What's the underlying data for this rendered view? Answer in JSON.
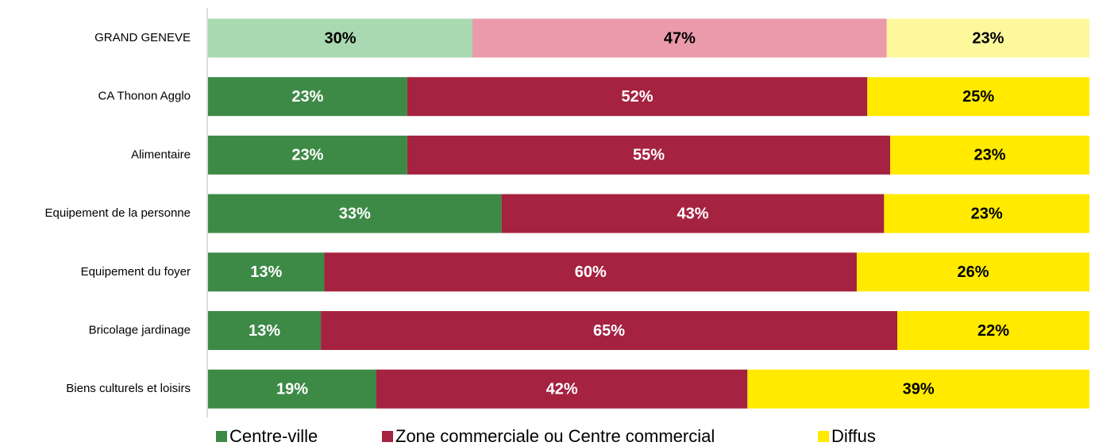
{
  "chart_data": {
    "type": "stacked-bar-horizontal",
    "categories": [
      "GRAND GENEVE",
      "CA Thonon Agglo",
      "Alimentaire",
      "Equipement de la personne",
      "Equipement du foyer",
      "Bricolage jardinage",
      "Biens culturels et loisirs"
    ],
    "xlim": [
      0,
      100
    ],
    "series": [
      {
        "name": "Centre-ville",
        "color": "#3d8a46",
        "colors": [
          "#a9d9b1",
          "#3d8a46",
          "#3d8a46",
          "#3d8a46",
          "#3d8a46",
          "#3d8a46",
          "#3d8a46"
        ],
        "values": [
          30,
          22.6,
          22.6,
          33.3,
          13.2,
          12.8,
          19.1
        ],
        "value_labels": [
          "30%",
          "23%",
          "23%",
          "33%",
          "13%",
          "13%",
          "19%"
        ]
      },
      {
        "name": "Zone commerciale ou Centre commercial",
        "color": "#a52240",
        "colors": [
          "#eb9aab",
          "#a52240",
          "#a52240",
          "#a52240",
          "#a52240",
          "#a52240",
          "#a52240"
        ],
        "values": [
          47,
          52.2,
          54.8,
          43.4,
          60.4,
          65.4,
          42.1
        ],
        "value_labels": [
          "47%",
          "52%",
          "55%",
          "43%",
          "60%",
          "65%",
          "42%"
        ]
      },
      {
        "name": "Diffus",
        "color": "#ffea00",
        "colors": [
          "#fdf89c",
          "#ffea00",
          "#ffea00",
          "#ffea00",
          "#ffea00",
          "#ffea00",
          "#ffea00"
        ],
        "values": [
          23,
          25.2,
          22.6,
          23.3,
          26.4,
          21.8,
          38.8
        ],
        "value_labels": [
          "23%",
          "25%",
          "23%",
          "23%",
          "26%",
          "22%",
          "39%"
        ]
      }
    ]
  }
}
